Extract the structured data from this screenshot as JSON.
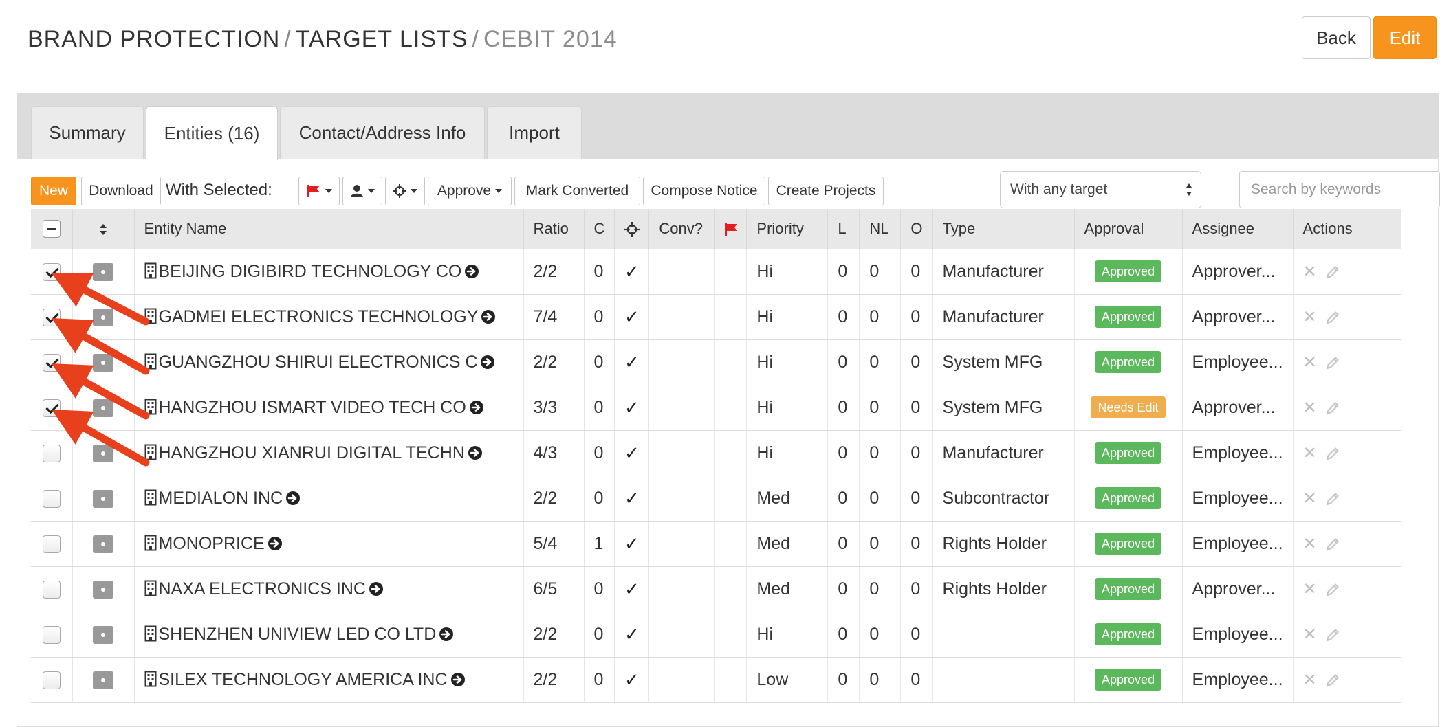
{
  "header": {
    "crumb1": "BRAND PROTECTION",
    "crumb2": "TARGET LISTS",
    "crumb3": "CEBIT 2014",
    "separator": "/",
    "back_label": "Back",
    "edit_label": "Edit"
  },
  "tabs": [
    {
      "label": "Summary",
      "active": false
    },
    {
      "label": "Entities (16)",
      "active": true
    },
    {
      "label": "Contact/Address Info",
      "active": false
    },
    {
      "label": "Import",
      "active": false
    }
  ],
  "toolbar": {
    "new_label": "New",
    "download_label": "Download",
    "with_selected_label": "With Selected:",
    "flag_menu_icon": "flag-icon",
    "user_menu_icon": "user-icon",
    "target_menu_icon": "crosshair-icon",
    "approve_label": "Approve",
    "mark_converted_label": "Mark Converted",
    "compose_notice_label": "Compose Notice",
    "create_projects_label": "Create Projects",
    "target_select_value": "With any target",
    "search_placeholder": "Search by keywords"
  },
  "columns": {
    "entity_name": "Entity Name",
    "ratio": "Ratio",
    "c": "C",
    "conv": "Conv?",
    "priority": "Priority",
    "l": "L",
    "nl": "NL",
    "o": "O",
    "type": "Type",
    "approval": "Approval",
    "assignee": "Assignee",
    "actions": "Actions"
  },
  "rows": [
    {
      "checked": true,
      "name": "BEIJING DIGIBIRD TECHNOLOGY CO",
      "ratio": "2/2",
      "c": "0",
      "target": "✓",
      "priority": "Hi",
      "l": "0",
      "nl": "0",
      "o": "0",
      "type": "Manufacturer",
      "approval": "Approved",
      "assignee": "Approver..."
    },
    {
      "checked": true,
      "name": "GADMEI ELECTRONICS TECHNOLOGY",
      "ratio": "7/4",
      "c": "0",
      "target": "✓",
      "priority": "Hi",
      "l": "0",
      "nl": "0",
      "o": "0",
      "type": "Manufacturer",
      "approval": "Approved",
      "assignee": "Approver..."
    },
    {
      "checked": true,
      "name": "GUANGZHOU SHIRUI ELECTRONICS C",
      "ratio": "2/2",
      "c": "0",
      "target": "✓",
      "priority": "Hi",
      "l": "0",
      "nl": "0",
      "o": "0",
      "type": "System MFG",
      "approval": "Approved",
      "assignee": "Employee..."
    },
    {
      "checked": true,
      "name": "HANGZHOU ISMART VIDEO TECH CO",
      "ratio": "3/3",
      "c": "0",
      "target": "✓",
      "priority": "Hi",
      "l": "0",
      "nl": "0",
      "o": "0",
      "type": "System MFG",
      "approval": "Needs Edit",
      "assignee": "Approver..."
    },
    {
      "checked": false,
      "name": "HANGZHOU XIANRUI DIGITAL TECHN",
      "ratio": "4/3",
      "c": "0",
      "target": "✓",
      "priority": "Hi",
      "l": "0",
      "nl": "0",
      "o": "0",
      "type": "Manufacturer",
      "approval": "Approved",
      "assignee": "Employee..."
    },
    {
      "checked": false,
      "name": "MEDIALON INC",
      "ratio": "2/2",
      "c": "0",
      "target": "✓",
      "priority": "Med",
      "l": "0",
      "nl": "0",
      "o": "0",
      "type": "Subcontractor",
      "approval": "Approved",
      "assignee": "Employee..."
    },
    {
      "checked": false,
      "name": "MONOPRICE",
      "ratio": "5/4",
      "c": "1",
      "target": "✓",
      "priority": "Med",
      "l": "0",
      "nl": "0",
      "o": "0",
      "type": "Rights Holder",
      "approval": "Approved",
      "assignee": "Employee..."
    },
    {
      "checked": false,
      "name": "NAXA ELECTRONICS INC",
      "ratio": "6/5",
      "c": "0",
      "target": "✓",
      "priority": "Med",
      "l": "0",
      "nl": "0",
      "o": "0",
      "type": "Rights Holder",
      "approval": "Approved",
      "assignee": "Approver..."
    },
    {
      "checked": false,
      "name": "SHENZHEN UNIVIEW LED CO LTD",
      "ratio": "2/2",
      "c": "0",
      "target": "✓",
      "priority": "Hi",
      "l": "0",
      "nl": "0",
      "o": "0",
      "type": "",
      "approval": "Approved",
      "assignee": "Employee..."
    },
    {
      "checked": false,
      "name": "SILEX TECHNOLOGY AMERICA INC",
      "ratio": "2/2",
      "c": "0",
      "target": "✓",
      "priority": "Low",
      "l": "0",
      "nl": "0",
      "o": "0",
      "type": "",
      "approval": "Approved",
      "assignee": "Employee..."
    }
  ],
  "actions": {
    "delete_icon": "close-icon",
    "edit_icon": "pencil-icon"
  },
  "colors": {
    "accent": "#f7941d",
    "approved": "#5cb85c",
    "needs_edit": "#f0ad4e",
    "annotation_arrow": "#e8401c",
    "flag": "#e02020"
  }
}
